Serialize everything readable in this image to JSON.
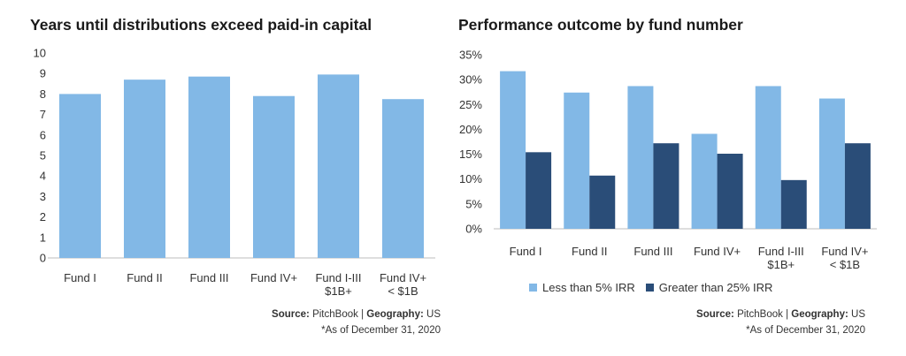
{
  "chart_data": [
    {
      "type": "bar",
      "title": "Years until distributions exceed paid-in capital",
      "categories": [
        [
          "Fund I"
        ],
        [
          "Fund II"
        ],
        [
          "Fund III"
        ],
        [
          "Fund IV+"
        ],
        [
          "Fund I-III",
          "$1B+"
        ],
        [
          "Fund IV+",
          "< $1B"
        ]
      ],
      "values": [
        8.0,
        8.7,
        8.85,
        7.9,
        8.95,
        7.75
      ],
      "ylim": [
        0,
        10
      ],
      "yticks": [
        "0",
        "1",
        "2",
        "3",
        "4",
        "5",
        "6",
        "7",
        "8",
        "9",
        "10"
      ],
      "grid": false,
      "colors": [
        "#82b8e6"
      ]
    },
    {
      "type": "bar",
      "title": "Performance outcome by fund number",
      "categories": [
        [
          "Fund I"
        ],
        [
          "Fund II"
        ],
        [
          "Fund III"
        ],
        [
          "Fund IV+"
        ],
        [
          "Fund I-III",
          "$1B+"
        ],
        [
          "Fund IV+",
          "< $1B"
        ]
      ],
      "series": [
        {
          "name": "Less than 5% IRR",
          "values": [
            31.7,
            27.4,
            28.7,
            19.1,
            28.7,
            26.2
          ],
          "color": "#82b8e6"
        },
        {
          "name": "Greater than 25% IRR",
          "values": [
            15.4,
            10.7,
            17.2,
            15.1,
            9.8,
            17.2
          ],
          "color": "#2a4d78"
        }
      ],
      "ylim": [
        0,
        35
      ],
      "yticks": [
        "0%",
        "5%",
        "10%",
        "15%",
        "20%",
        "25%",
        "30%",
        "35%"
      ],
      "legend": "bottom",
      "grid": false
    }
  ],
  "sources": [
    {
      "label": "Source:",
      "value": "PitchBook",
      "sep": "|",
      "label2": "Geography:",
      "value2": "US",
      "note": "*As of December 31, 2020"
    },
    {
      "label": "Source:",
      "value": "PitchBook",
      "sep": "|",
      "label2": "Geography:",
      "value2": "US",
      "note": "*As of December 31, 2020"
    }
  ]
}
